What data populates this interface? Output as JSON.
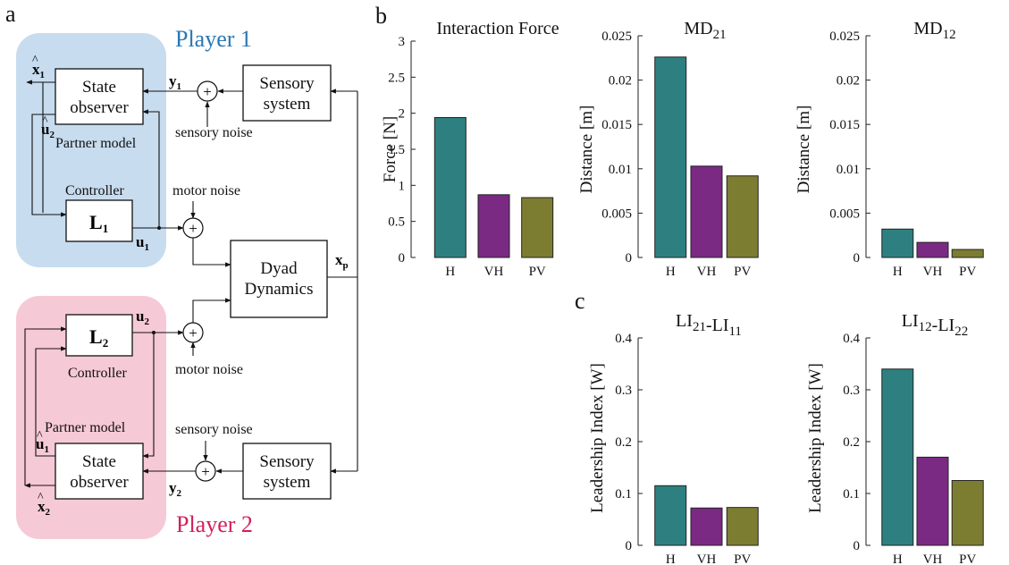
{
  "panel_labels": {
    "a": "a",
    "b": "b",
    "c": "c"
  },
  "diagram": {
    "player1": {
      "title": "Player 1",
      "color": "#2878b5",
      "bg": "#c7dcee"
    },
    "player2": {
      "title": "Player 2",
      "color": "#d21f5c",
      "bg": "#f6c9d6"
    },
    "state_observer": [
      "State",
      "observer"
    ],
    "sensory_system": [
      "Sensory",
      "system"
    ],
    "dyad_dynamics": [
      "Dyad",
      "Dynamics"
    ],
    "controller": "Controller",
    "partner_model": "Partner model",
    "sensory_noise": "sensory noise",
    "motor_noise": "motor noise",
    "L1": "L",
    "L1_sub": "1",
    "L2": "L",
    "L2_sub": "2",
    "sum": "+",
    "signals": {
      "y1": "y",
      "y1_sub": "1",
      "y2": "y",
      "y2_sub": "2",
      "u1": "u",
      "u1_sub": "1",
      "u2": "u",
      "u2_sub": "2",
      "xp": "x",
      "xp_sub": "p",
      "x1hat": "x",
      "x1hat_sub": "1",
      "x2hat": "x",
      "x2hat_sub": "2",
      "u1hat": "u",
      "u1hat_sub": "1",
      "u2hat": "u",
      "u2hat_sub": "2",
      "hat": "^"
    }
  },
  "chart_data": [
    {
      "type": "bar",
      "title": "Interaction Force",
      "title_parts": [
        {
          "t": "Interaction Force",
          "sub": ""
        }
      ],
      "ylabel": "Force [N]",
      "categories": [
        "H",
        "VH",
        "PV"
      ],
      "values": [
        1.94,
        0.87,
        0.83
      ],
      "ylim": [
        0,
        3
      ],
      "yticks": [
        "0",
        "0.5",
        "1",
        "1.5",
        "2",
        "2.5",
        "3"
      ],
      "colors": [
        "#2e8080",
        "#7b2a84",
        "#7d7d32"
      ]
    },
    {
      "type": "bar",
      "title": "MD21",
      "title_parts": [
        {
          "t": "MD",
          "sub": "21"
        }
      ],
      "ylabel": "Distance [m]",
      "categories": [
        "H",
        "VH",
        "PV"
      ],
      "values": [
        0.0226,
        0.0103,
        0.0092
      ],
      "ylim": [
        0,
        0.025
      ],
      "yticks": [
        "0",
        "0.005",
        "0.01",
        "0.015",
        "0.02",
        "0.025"
      ],
      "colors": [
        "#2e8080",
        "#7b2a84",
        "#7d7d32"
      ]
    },
    {
      "type": "bar",
      "title": "MD12",
      "title_parts": [
        {
          "t": "MD",
          "sub": "12"
        }
      ],
      "ylabel": "Distance [m]",
      "categories": [
        "H",
        "VH",
        "PV"
      ],
      "values": [
        0.0032,
        0.0017,
        0.0009
      ],
      "ylim": [
        0,
        0.025
      ],
      "yticks": [
        "0",
        "0.005",
        "0.01",
        "0.015",
        "0.02",
        "0.025"
      ],
      "colors": [
        "#2e8080",
        "#7b2a84",
        "#7d7d32"
      ]
    },
    {
      "type": "bar",
      "title": "LI21-LI11",
      "title_parts": [
        {
          "t": "LI",
          "sub": "21"
        },
        {
          "t": "-LI",
          "sub": "11"
        }
      ],
      "ylabel": "Leadership Index [W]",
      "categories": [
        "H",
        "VH",
        "PV"
      ],
      "values": [
        0.115,
        0.072,
        0.073
      ],
      "ylim": [
        0,
        0.4
      ],
      "yticks": [
        "0",
        "0.1",
        "0.2",
        "0.3",
        "0.4"
      ],
      "colors": [
        "#2e8080",
        "#7b2a84",
        "#7d7d32"
      ]
    },
    {
      "type": "bar",
      "title": "LI12-LI22",
      "title_parts": [
        {
          "t": "LI",
          "sub": "12"
        },
        {
          "t": "-LI",
          "sub": "22"
        }
      ],
      "ylabel": "Leadership Index [W]",
      "categories": [
        "H",
        "VH",
        "PV"
      ],
      "values": [
        0.34,
        0.17,
        0.125
      ],
      "ylim": [
        0,
        0.4
      ],
      "yticks": [
        "0",
        "0.1",
        "0.2",
        "0.3",
        "0.4"
      ],
      "colors": [
        "#2e8080",
        "#7b2a84",
        "#7d7d32"
      ]
    }
  ]
}
